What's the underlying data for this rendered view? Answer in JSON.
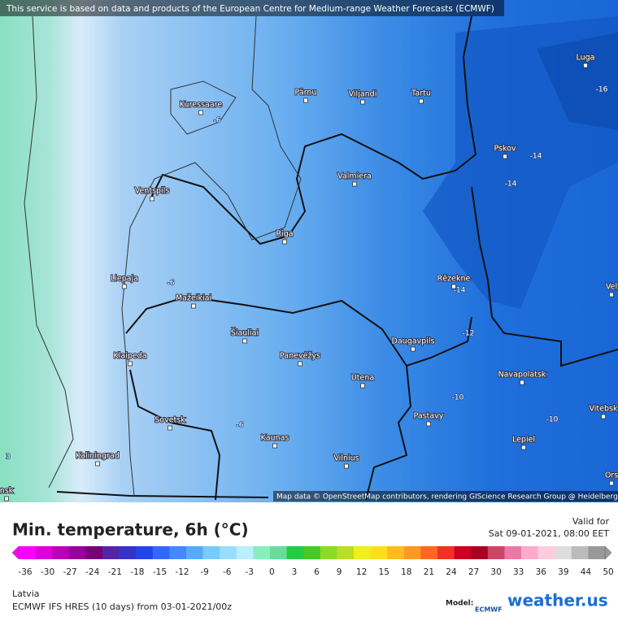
{
  "header": {
    "notice": "This service is based on data and products of the European Centre for Medium-range Weather Forecasts (ECMWF)"
  },
  "map": {
    "attribution": "Map data © OpenStreetMap contributors, rendering GIScience Research Group @ Heidelberg University",
    "cities": [
      "Luga",
      "Pärnu",
      "Viljandi",
      "Tartu",
      "Kuressaare",
      "Pskov",
      "Valmiera",
      "Ventspils",
      "Riga",
      "Liepaja",
      "Rēzekne",
      "Mažeikiai",
      "Šiauliai",
      "Daugavpils",
      "Klaipeda",
      "Panevėžys",
      "Navapolatsk",
      "Utena",
      "Vitebsk",
      "Pastavy",
      "Sovetsk",
      "Lepiel",
      "Kaunas",
      "Kaliningrad",
      "Vilnius",
      "Vel",
      "Ors",
      "nsk"
    ],
    "contour_labels": [
      "-16",
      "-6",
      "-14",
      "-14",
      "-6",
      "-14",
      "-12",
      "-10",
      "-10",
      "-6",
      "3"
    ]
  },
  "legend": {
    "title": "Min. temperature, 6h (°C)",
    "valid_label": "Valid for",
    "valid_time": "Sat 09-01-2021, 08:00 EET",
    "ticks": [
      -36,
      -30,
      -27,
      -24,
      -21,
      -18,
      -15,
      -12,
      -9,
      -6,
      -3,
      0,
      3,
      6,
      9,
      12,
      15,
      18,
      21,
      24,
      27,
      30,
      33,
      36,
      39,
      44,
      50
    ]
  },
  "footer": {
    "region": "Latvia",
    "model_run": "ECMWF IFS HRES (10 days) from 03-01-2021/00z",
    "model_label": "Model:",
    "ecmwf": "ECMWF",
    "brand": "weather.us"
  }
}
